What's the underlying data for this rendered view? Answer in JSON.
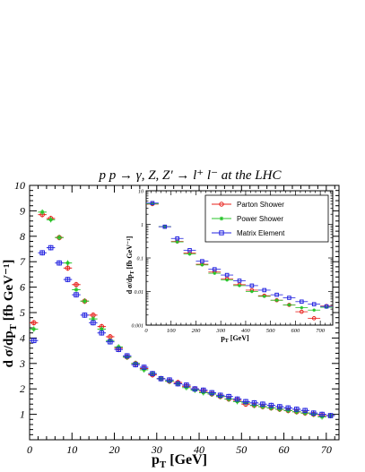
{
  "chart_data": [
    {
      "type": "scatter",
      "title": "p p → γ, Z, Z' → l⁺ l⁻ at the LHC",
      "xlabel": "p",
      "xlabel_sub": "T",
      "xlabel_unit": " [GeV]",
      "ylabel": "d σ/dp",
      "ylabel_sub": "T",
      "ylabel_unit": "[fb GeV⁻¹]",
      "xlim": [
        0,
        73
      ],
      "ylim": [
        0,
        10
      ],
      "x_ticks": [
        "0",
        "10",
        "20",
        "30",
        "40",
        "50",
        "60",
        "70"
      ],
      "y_ticks": [
        "1",
        "2",
        "3",
        "4",
        "5",
        "6",
        "7",
        "8",
        "9",
        "10"
      ],
      "colors": {
        "Parton Shower": "#e8201b",
        "Power Shower": "#27c42a",
        "Matrix Element": "#2323e0"
      },
      "series": [
        {
          "name": "Parton Shower",
          "marker": "circle",
          "x": [
            1,
            3,
            5,
            7,
            9,
            11,
            13,
            15,
            17,
            19,
            21,
            23,
            25,
            27,
            29,
            31,
            33,
            35,
            37,
            39,
            41,
            43,
            45,
            47,
            49,
            51,
            53,
            55,
            57,
            59,
            61,
            63,
            65,
            67,
            69,
            71
          ],
          "y": [
            4.6,
            8.85,
            8.7,
            7.95,
            6.75,
            6.1,
            5.45,
            4.9,
            4.45,
            4.05,
            3.6,
            3.25,
            3.0,
            2.8,
            2.55,
            2.4,
            2.3,
            2.25,
            2.1,
            2.0,
            1.9,
            1.8,
            1.7,
            1.6,
            1.55,
            1.4,
            1.35,
            1.3,
            1.25,
            1.2,
            1.15,
            1.1,
            1.05,
            1.0,
            0.95,
            0.95
          ]
        },
        {
          "name": "Power Shower",
          "marker": "star",
          "x": [
            1,
            3,
            5,
            7,
            9,
            11,
            13,
            15,
            17,
            19,
            21,
            23,
            25,
            27,
            29,
            31,
            33,
            35,
            37,
            39,
            41,
            43,
            45,
            47,
            49,
            51,
            53,
            55,
            57,
            59,
            61,
            63,
            65,
            67,
            69,
            71
          ],
          "y": [
            4.35,
            8.95,
            8.65,
            7.95,
            6.95,
            5.9,
            5.45,
            4.75,
            4.35,
            3.9,
            3.65,
            3.25,
            3.0,
            2.75,
            2.6,
            2.4,
            2.3,
            2.2,
            2.05,
            1.95,
            1.85,
            1.8,
            1.7,
            1.6,
            1.5,
            1.45,
            1.35,
            1.3,
            1.25,
            1.2,
            1.15,
            1.1,
            1.05,
            1.0,
            0.9,
            0.95
          ]
        },
        {
          "name": "Matrix Element",
          "marker": "square",
          "x": [
            1,
            3,
            5,
            7,
            9,
            11,
            13,
            15,
            17,
            19,
            21,
            23,
            25,
            27,
            29,
            31,
            33,
            35,
            37,
            39,
            41,
            43,
            45,
            47,
            49,
            51,
            53,
            55,
            57,
            59,
            61,
            63,
            65,
            67,
            69,
            71
          ],
          "y": [
            3.9,
            7.35,
            7.55,
            6.95,
            6.3,
            5.7,
            4.9,
            4.6,
            4.2,
            3.85,
            3.55,
            3.3,
            2.95,
            2.85,
            2.6,
            2.4,
            2.35,
            2.2,
            2.15,
            2.0,
            1.95,
            1.85,
            1.75,
            1.7,
            1.6,
            1.5,
            1.45,
            1.4,
            1.35,
            1.3,
            1.25,
            1.2,
            1.15,
            1.05,
            1.0,
            0.95
          ]
        }
      ]
    },
    {
      "type": "scatter",
      "title": "",
      "xlabel": "p",
      "xlabel_sub": "T",
      "xlabel_unit": " [GeV]",
      "ylabel": "d σ/dp",
      "ylabel_sub": "T",
      "ylabel_unit": " [fb GeV⁻¹]",
      "xlim": [
        0,
        750
      ],
      "ylim": [
        0.001,
        10
      ],
      "yscale": "log",
      "x_ticks": [
        "0",
        "100",
        "200",
        "300",
        "400",
        "500",
        "600",
        "700"
      ],
      "y_ticks": [
        "0.001",
        "0.01",
        "0.1",
        "1",
        "10"
      ],
      "legend_position": "top-right",
      "legend": [
        "Parton Shower",
        "Power Shower",
        "Matrix Element"
      ],
      "series": [
        {
          "name": "Parton Shower",
          "marker": "circle",
          "x": [
            25,
            75,
            125,
            175,
            225,
            275,
            325,
            375,
            425,
            475,
            525,
            575,
            625,
            675,
            725
          ],
          "y": [
            4.0,
            0.85,
            0.31,
            0.14,
            0.065,
            0.038,
            0.024,
            0.016,
            0.011,
            0.0075,
            0.0055,
            0.004,
            0.0025,
            0.0016,
            0.0037
          ]
        },
        {
          "name": "Power Shower",
          "marker": "star",
          "x": [
            25,
            75,
            125,
            175,
            225,
            275,
            325,
            375,
            425,
            475,
            525,
            575,
            625,
            675,
            725
          ],
          "y": [
            4.1,
            0.86,
            0.3,
            0.13,
            0.062,
            0.035,
            0.022,
            0.015,
            0.01,
            0.0072,
            0.0055,
            0.004,
            0.0033,
            0.0028,
            0.0034
          ]
        },
        {
          "name": "Matrix Element",
          "marker": "square",
          "x": [
            25,
            75,
            125,
            175,
            225,
            275,
            325,
            375,
            425,
            475,
            525,
            575,
            625,
            675,
            725
          ],
          "y": [
            4.3,
            0.85,
            0.38,
            0.17,
            0.08,
            0.046,
            0.031,
            0.021,
            0.015,
            0.011,
            0.008,
            0.0065,
            0.005,
            0.0042,
            0.0036
          ]
        }
      ]
    }
  ]
}
